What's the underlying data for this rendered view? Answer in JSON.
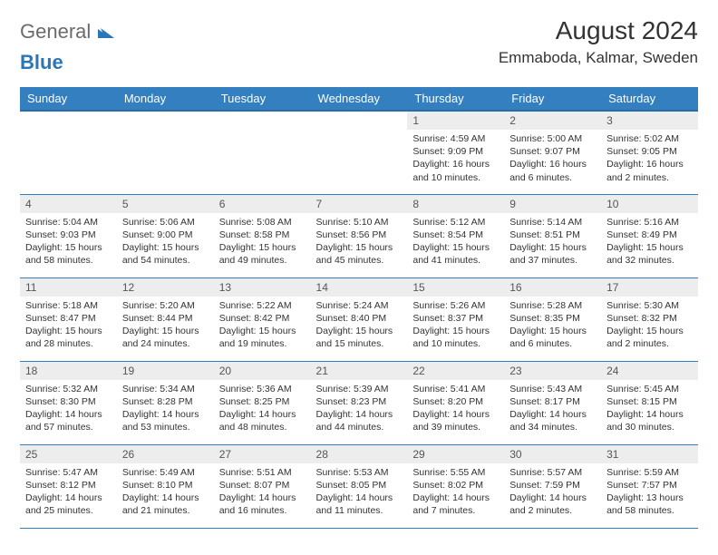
{
  "logo": {
    "general": "General",
    "blue": "Blue"
  },
  "title": "August 2024",
  "location": "Emmaboda, Kalmar, Sweden",
  "colors": {
    "header_bg": "#337fc0",
    "header_text": "#ffffff",
    "row_border": "#337fc0",
    "daynum_bg": "#ededed",
    "text": "#333333",
    "logo_gray": "#6b6b6b",
    "logo_blue": "#2a76b8"
  },
  "weekdays": [
    "Sunday",
    "Monday",
    "Tuesday",
    "Wednesday",
    "Thursday",
    "Friday",
    "Saturday"
  ],
  "weeks": [
    [
      {
        "empty": true
      },
      {
        "empty": true
      },
      {
        "empty": true
      },
      {
        "empty": true
      },
      {
        "day": "1",
        "sunrise": "Sunrise: 4:59 AM",
        "sunset": "Sunset: 9:09 PM",
        "daylight1": "Daylight: 16 hours",
        "daylight2": "and 10 minutes."
      },
      {
        "day": "2",
        "sunrise": "Sunrise: 5:00 AM",
        "sunset": "Sunset: 9:07 PM",
        "daylight1": "Daylight: 16 hours",
        "daylight2": "and 6 minutes."
      },
      {
        "day": "3",
        "sunrise": "Sunrise: 5:02 AM",
        "sunset": "Sunset: 9:05 PM",
        "daylight1": "Daylight: 16 hours",
        "daylight2": "and 2 minutes."
      }
    ],
    [
      {
        "day": "4",
        "sunrise": "Sunrise: 5:04 AM",
        "sunset": "Sunset: 9:03 PM",
        "daylight1": "Daylight: 15 hours",
        "daylight2": "and 58 minutes."
      },
      {
        "day": "5",
        "sunrise": "Sunrise: 5:06 AM",
        "sunset": "Sunset: 9:00 PM",
        "daylight1": "Daylight: 15 hours",
        "daylight2": "and 54 minutes."
      },
      {
        "day": "6",
        "sunrise": "Sunrise: 5:08 AM",
        "sunset": "Sunset: 8:58 PM",
        "daylight1": "Daylight: 15 hours",
        "daylight2": "and 49 minutes."
      },
      {
        "day": "7",
        "sunrise": "Sunrise: 5:10 AM",
        "sunset": "Sunset: 8:56 PM",
        "daylight1": "Daylight: 15 hours",
        "daylight2": "and 45 minutes."
      },
      {
        "day": "8",
        "sunrise": "Sunrise: 5:12 AM",
        "sunset": "Sunset: 8:54 PM",
        "daylight1": "Daylight: 15 hours",
        "daylight2": "and 41 minutes."
      },
      {
        "day": "9",
        "sunrise": "Sunrise: 5:14 AM",
        "sunset": "Sunset: 8:51 PM",
        "daylight1": "Daylight: 15 hours",
        "daylight2": "and 37 minutes."
      },
      {
        "day": "10",
        "sunrise": "Sunrise: 5:16 AM",
        "sunset": "Sunset: 8:49 PM",
        "daylight1": "Daylight: 15 hours",
        "daylight2": "and 32 minutes."
      }
    ],
    [
      {
        "day": "11",
        "sunrise": "Sunrise: 5:18 AM",
        "sunset": "Sunset: 8:47 PM",
        "daylight1": "Daylight: 15 hours",
        "daylight2": "and 28 minutes."
      },
      {
        "day": "12",
        "sunrise": "Sunrise: 5:20 AM",
        "sunset": "Sunset: 8:44 PM",
        "daylight1": "Daylight: 15 hours",
        "daylight2": "and 24 minutes."
      },
      {
        "day": "13",
        "sunrise": "Sunrise: 5:22 AM",
        "sunset": "Sunset: 8:42 PM",
        "daylight1": "Daylight: 15 hours",
        "daylight2": "and 19 minutes."
      },
      {
        "day": "14",
        "sunrise": "Sunrise: 5:24 AM",
        "sunset": "Sunset: 8:40 PM",
        "daylight1": "Daylight: 15 hours",
        "daylight2": "and 15 minutes."
      },
      {
        "day": "15",
        "sunrise": "Sunrise: 5:26 AM",
        "sunset": "Sunset: 8:37 PM",
        "daylight1": "Daylight: 15 hours",
        "daylight2": "and 10 minutes."
      },
      {
        "day": "16",
        "sunrise": "Sunrise: 5:28 AM",
        "sunset": "Sunset: 8:35 PM",
        "daylight1": "Daylight: 15 hours",
        "daylight2": "and 6 minutes."
      },
      {
        "day": "17",
        "sunrise": "Sunrise: 5:30 AM",
        "sunset": "Sunset: 8:32 PM",
        "daylight1": "Daylight: 15 hours",
        "daylight2": "and 2 minutes."
      }
    ],
    [
      {
        "day": "18",
        "sunrise": "Sunrise: 5:32 AM",
        "sunset": "Sunset: 8:30 PM",
        "daylight1": "Daylight: 14 hours",
        "daylight2": "and 57 minutes."
      },
      {
        "day": "19",
        "sunrise": "Sunrise: 5:34 AM",
        "sunset": "Sunset: 8:28 PM",
        "daylight1": "Daylight: 14 hours",
        "daylight2": "and 53 minutes."
      },
      {
        "day": "20",
        "sunrise": "Sunrise: 5:36 AM",
        "sunset": "Sunset: 8:25 PM",
        "daylight1": "Daylight: 14 hours",
        "daylight2": "and 48 minutes."
      },
      {
        "day": "21",
        "sunrise": "Sunrise: 5:39 AM",
        "sunset": "Sunset: 8:23 PM",
        "daylight1": "Daylight: 14 hours",
        "daylight2": "and 44 minutes."
      },
      {
        "day": "22",
        "sunrise": "Sunrise: 5:41 AM",
        "sunset": "Sunset: 8:20 PM",
        "daylight1": "Daylight: 14 hours",
        "daylight2": "and 39 minutes."
      },
      {
        "day": "23",
        "sunrise": "Sunrise: 5:43 AM",
        "sunset": "Sunset: 8:17 PM",
        "daylight1": "Daylight: 14 hours",
        "daylight2": "and 34 minutes."
      },
      {
        "day": "24",
        "sunrise": "Sunrise: 5:45 AM",
        "sunset": "Sunset: 8:15 PM",
        "daylight1": "Daylight: 14 hours",
        "daylight2": "and 30 minutes."
      }
    ],
    [
      {
        "day": "25",
        "sunrise": "Sunrise: 5:47 AM",
        "sunset": "Sunset: 8:12 PM",
        "daylight1": "Daylight: 14 hours",
        "daylight2": "and 25 minutes."
      },
      {
        "day": "26",
        "sunrise": "Sunrise: 5:49 AM",
        "sunset": "Sunset: 8:10 PM",
        "daylight1": "Daylight: 14 hours",
        "daylight2": "and 21 minutes."
      },
      {
        "day": "27",
        "sunrise": "Sunrise: 5:51 AM",
        "sunset": "Sunset: 8:07 PM",
        "daylight1": "Daylight: 14 hours",
        "daylight2": "and 16 minutes."
      },
      {
        "day": "28",
        "sunrise": "Sunrise: 5:53 AM",
        "sunset": "Sunset: 8:05 PM",
        "daylight1": "Daylight: 14 hours",
        "daylight2": "and 11 minutes."
      },
      {
        "day": "29",
        "sunrise": "Sunrise: 5:55 AM",
        "sunset": "Sunset: 8:02 PM",
        "daylight1": "Daylight: 14 hours",
        "daylight2": "and 7 minutes."
      },
      {
        "day": "30",
        "sunrise": "Sunrise: 5:57 AM",
        "sunset": "Sunset: 7:59 PM",
        "daylight1": "Daylight: 14 hours",
        "daylight2": "and 2 minutes."
      },
      {
        "day": "31",
        "sunrise": "Sunrise: 5:59 AM",
        "sunset": "Sunset: 7:57 PM",
        "daylight1": "Daylight: 13 hours",
        "daylight2": "and 58 minutes."
      }
    ]
  ]
}
